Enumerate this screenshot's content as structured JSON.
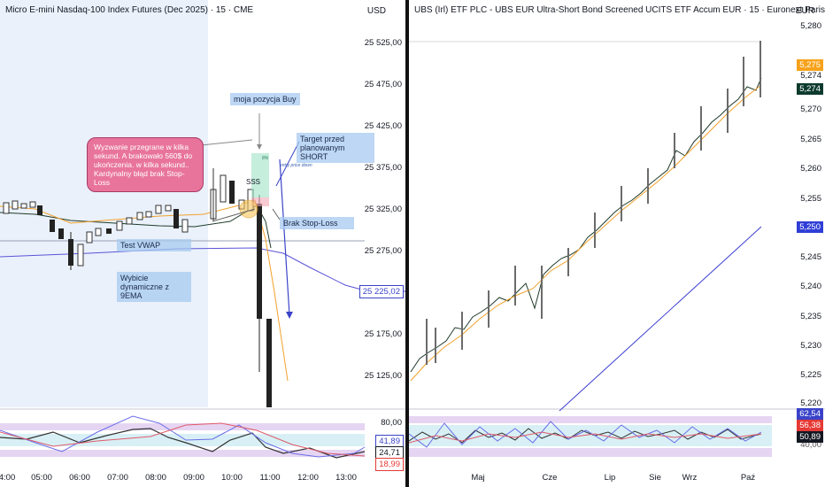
{
  "left_chart": {
    "title": "Micro E-mini Nasdaq-100 Index Futures (Dec 2025) · 15 · CME",
    "currency": "USD",
    "price_labels": [
      "25 525,00",
      "25 475,00",
      "25 425,00",
      "25 375,00",
      "25 325,00",
      "25 275,00",
      "25 175,00",
      "25 125,00"
    ],
    "price_tag": "25 225,02",
    "time_labels": [
      "4:00",
      "05:00",
      "06:00",
      "07:00",
      "08:00",
      "09:00",
      "10:00",
      "11:00",
      "12:00",
      "13:00"
    ],
    "annotations": {
      "position": "moja pozycja Buy",
      "target": "Target przed planowanym SHORT",
      "stop_loss": "Brak Stop-Loss",
      "vwap": "Test VWAP",
      "ema": "Wybicie dynamiczne z 9EMA",
      "note": "Wyzwanie przegrane w kilka sekund. A brakowało 560$ do ukończenia. w kilka sekund.. Kardynalny błąd brak Stop-Loss",
      "sss": "SSS",
      "entry": "entry price down",
      "pct": "8%"
    },
    "oscillator": {
      "upper_label": "80,00",
      "tags": [
        "41,89",
        "24,71",
        "18,99"
      ],
      "tag_colors": [
        "#3a43c8",
        "#131722",
        "#e53935"
      ]
    }
  },
  "right_chart": {
    "title": "UBS (Irl) ETF PLC - UBS EUR Ultra-Short Bond Screened UCITS ETF Accum EUR · 15 · Euronext Paris",
    "currency": "EUR",
    "price_labels": [
      "5,280",
      "5,274",
      "5,270",
      "5,265",
      "5,260",
      "5,255",
      "5,245",
      "5,240",
      "5,235",
      "5,230",
      "5,225",
      "5,220"
    ],
    "tags": [
      {
        "text": "5,275",
        "bg": "#f7a21b",
        "fg": "#fff"
      },
      {
        "text": "5,274",
        "bg": "#0d3b2e",
        "fg": "#fff"
      },
      {
        "text": "5,250",
        "bg": "#2f3ed6",
        "fg": "#fff"
      }
    ],
    "time_labels": [
      "Maj",
      "Cze",
      "Lip",
      "Sie",
      "Wrz",
      "Paź"
    ],
    "oscillator": {
      "label": "40,00",
      "tags": [
        {
          "text": "62,54",
          "bg": "#3a43c8"
        },
        {
          "text": "56,38",
          "bg": "#e53935"
        },
        {
          "text": "50,89",
          "bg": "#131722"
        }
      ]
    }
  }
}
